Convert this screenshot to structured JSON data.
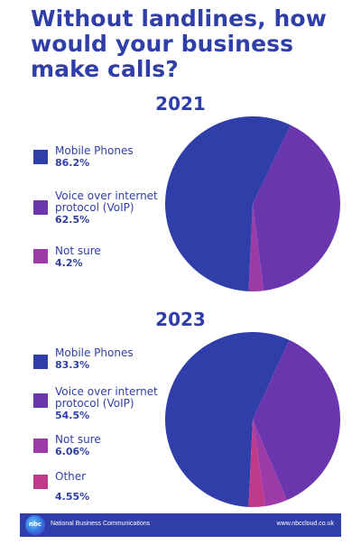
{
  "title": "Without landlines, how would your business make calls?",
  "colors": {
    "text": "#2f3ea8",
    "mobile": "#2f3ea8",
    "voip": "#6b36ad",
    "not_sure": "#9c3aa8",
    "other": "#c03a8c",
    "footer_bg": "#2f3ea8"
  },
  "chart_data": [
    {
      "type": "pie",
      "title": "2021",
      "slices": [
        {
          "label": "Mobile Phones",
          "value_text": "86.2%",
          "value": 86.2
        },
        {
          "label": "Voice over internet\nprotocol (VoIP)",
          "value_text": "62.5%",
          "value": 62.5
        },
        {
          "label": "Not sure",
          "value_text": "4.2%",
          "value": 4.2
        }
      ]
    },
    {
      "type": "pie",
      "title": "2023",
      "slices": [
        {
          "label": "Mobile Phones",
          "value_text": "83.3%",
          "value": 83.3
        },
        {
          "label": "Voice over internet\nprotocol (VoIP)",
          "value_text": "54.5%",
          "value": 54.5
        },
        {
          "label": "Not sure",
          "value_text": "6.06%",
          "value": 6.06
        },
        {
          "label": "Other",
          "value_text": "4.55%",
          "value": 4.55
        }
      ]
    }
  ],
  "footer": {
    "logo_text": "nbc",
    "company": "National Business Communications",
    "website": "www.nbccloud.co.uk"
  }
}
